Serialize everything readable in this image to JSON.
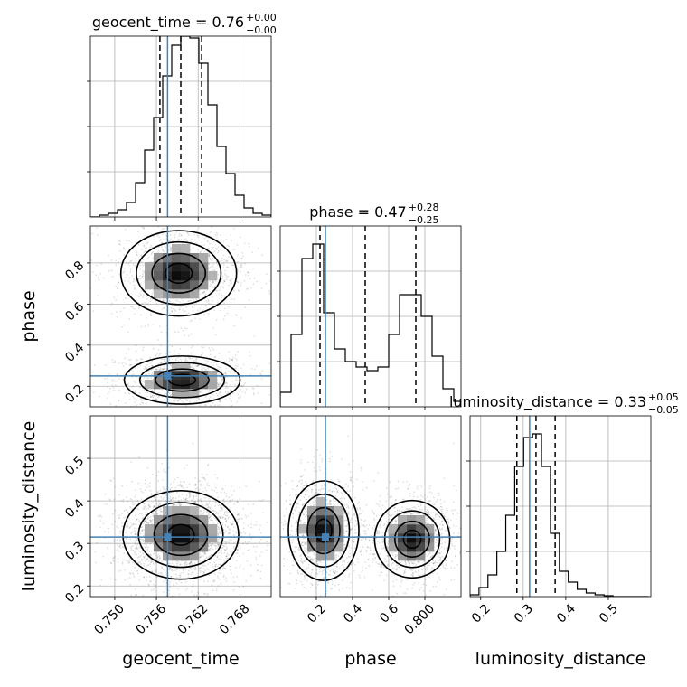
{
  "chart_data": {
    "type": "corner",
    "parameters": [
      "geocent_time",
      "phase",
      "luminosity_distance"
    ],
    "truths": {
      "geocent_time": 0.7576,
      "phase": 0.25,
      "luminosity_distance": 0.315
    },
    "panels": [
      {
        "kind": "hist",
        "row": 0,
        "col": 0,
        "title_text": "geocent_time = 0.76",
        "title_sup": "+0.00",
        "title_sub": "−0.00",
        "xlim": [
          0.7465,
          0.7725
        ],
        "ylim": [
          0,
          1.0
        ],
        "bins": [
          0.7465,
          0.7478,
          0.7491,
          0.7504,
          0.7517,
          0.753,
          0.7543,
          0.7556,
          0.7569,
          0.7582,
          0.7595,
          0.7608,
          0.7621,
          0.7634,
          0.7647,
          0.766,
          0.7673,
          0.7686,
          0.7699,
          0.7712,
          0.7725
        ],
        "counts": [
          0,
          0.01,
          0.02,
          0.04,
          0.08,
          0.19,
          0.37,
          0.55,
          0.78,
          0.95,
          1.0,
          0.99,
          0.85,
          0.62,
          0.39,
          0.24,
          0.12,
          0.05,
          0.02,
          0.01
        ],
        "quantiles": [
          0.7565,
          0.7595,
          0.7625
        ],
        "xticks": [
          0.75,
          0.756,
          0.762,
          0.768
        ],
        "show_xticklabels": false
      },
      {
        "kind": "hist2d",
        "row": 1,
        "col": 0,
        "xlim": [
          0.7465,
          0.7725
        ],
        "ylim": [
          0.1,
          0.98
        ],
        "x_param": "geocent_time",
        "y_param": "phase",
        "yticks": [
          0.2,
          0.4,
          0.6,
          0.8
        ],
        "ylabel": "phase",
        "modes": [
          {
            "cx": 0.7597,
            "cy": 0.23,
            "sx": 0.0032,
            "sy": 0.045
          },
          {
            "cx": 0.7592,
            "cy": 0.75,
            "sx": 0.0032,
            "sy": 0.08
          }
        ]
      },
      {
        "kind": "hist",
        "row": 1,
        "col": 1,
        "title_text": "phase = 0.47",
        "title_sup": "+0.28",
        "title_sub": "−0.25",
        "xlim": [
          0.0,
          1.0
        ],
        "ylim": [
          0,
          1.0
        ],
        "bins": [
          0.0,
          0.06,
          0.12,
          0.18,
          0.24,
          0.3,
          0.36,
          0.42,
          0.48,
          0.54,
          0.6,
          0.66,
          0.72,
          0.78,
          0.84,
          0.9,
          0.96,
          1.0
        ],
        "counts": [
          0.08,
          0.4,
          0.82,
          0.9,
          0.52,
          0.32,
          0.25,
          0.22,
          0.2,
          0.22,
          0.4,
          0.62,
          0.62,
          0.5,
          0.28,
          0.1,
          0.03
        ],
        "quantiles": [
          0.22,
          0.47,
          0.75
        ],
        "xticks": [
          0.2,
          0.4,
          0.6,
          0.8
        ],
        "show_xticklabels": false
      },
      {
        "kind": "hist2d",
        "row": 2,
        "col": 0,
        "xlim": [
          0.7465,
          0.7725
        ],
        "ylim": [
          0.175,
          0.6
        ],
        "x_param": "geocent_time",
        "y_param": "luminosity_distance",
        "xticks": [
          0.75,
          0.756,
          0.762,
          0.768
        ],
        "yticks": [
          0.2,
          0.3,
          0.4,
          0.5
        ],
        "xlabel": "geocent_time",
        "ylabel": "luminosity_distance",
        "modes": [
          {
            "cx": 0.7595,
            "cy": 0.32,
            "sx": 0.0032,
            "sy": 0.04
          }
        ]
      },
      {
        "kind": "hist2d",
        "row": 2,
        "col": 1,
        "xlim": [
          0.0,
          1.0
        ],
        "ylim": [
          0.175,
          0.6
        ],
        "x_param": "phase",
        "y_param": "luminosity_distance",
        "xticks": [
          0.2,
          0.4,
          0.6,
          0.8
        ],
        "xlabel": "phase",
        "modes": [
          {
            "cx": 0.24,
            "cy": 0.33,
            "sx": 0.075,
            "sy": 0.045
          },
          {
            "cx": 0.73,
            "cy": 0.31,
            "sx": 0.08,
            "sy": 0.035
          }
        ]
      },
      {
        "kind": "hist",
        "row": 2,
        "col": 2,
        "title_text": "luminosity_distance = 0.33",
        "title_sup": "+0.05",
        "title_sub": "−0.05",
        "xlim": [
          0.175,
          0.6
        ],
        "ylim": [
          0,
          1.0
        ],
        "bins": [
          0.175,
          0.196,
          0.217,
          0.238,
          0.259,
          0.28,
          0.301,
          0.322,
          0.343,
          0.364,
          0.385,
          0.406,
          0.427,
          0.448,
          0.469,
          0.49,
          0.511,
          0.532,
          0.553,
          0.574,
          0.595
        ],
        "counts": [
          0.01,
          0.05,
          0.12,
          0.25,
          0.45,
          0.72,
          0.88,
          0.9,
          0.72,
          0.35,
          0.14,
          0.08,
          0.04,
          0.02,
          0.01,
          0.005,
          0,
          0,
          0,
          0
        ],
        "quantiles": [
          0.285,
          0.33,
          0.375
        ],
        "xticks": [
          0.2,
          0.3,
          0.4,
          0.5
        ],
        "xlabel": "luminosity_distance",
        "show_xticklabels": true
      }
    ],
    "grid": true
  },
  "colors": {
    "truth": "#4682b4",
    "density": "#000000",
    "contour": "#000000",
    "grid": "#b0b0b0"
  }
}
